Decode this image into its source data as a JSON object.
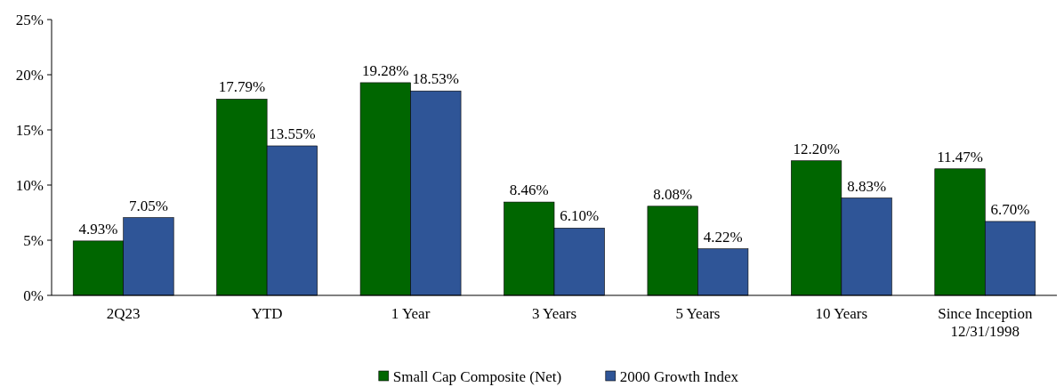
{
  "chart_data": {
    "type": "bar",
    "categories": [
      "2Q23",
      "YTD",
      "1 Year",
      "3 Years",
      "5 Years",
      "10 Years",
      "Since Inception\n12/31/1998"
    ],
    "series": [
      {
        "name": "Small Cap Composite (Net)",
        "color": "#006600",
        "values": [
          4.93,
          17.79,
          19.28,
          8.46,
          8.08,
          12.2,
          11.47
        ],
        "value_labels": [
          "4.93%",
          "17.79%",
          "19.28%",
          "8.46%",
          "8.08%",
          "12.20%",
          "11.47%"
        ]
      },
      {
        "name": "2000 Growth Index",
        "color": "#2f5597",
        "values": [
          7.05,
          13.55,
          18.53,
          6.1,
          4.22,
          8.83,
          6.7
        ],
        "value_labels": [
          "7.05%",
          "13.55%",
          "18.53%",
          "6.10%",
          "4.22%",
          "8.83%",
          "6.70%"
        ]
      }
    ],
    "ylim": [
      0,
      25
    ],
    "yticks": [
      {
        "value": 0,
        "label": "0%"
      },
      {
        "value": 5,
        "label": "5%"
      },
      {
        "value": 10,
        "label": "10%"
      },
      {
        "value": 15,
        "label": "15%"
      },
      {
        "value": 20,
        "label": "20%"
      },
      {
        "value": 25,
        "label": "25%"
      }
    ],
    "grid": false,
    "legend": "bottom"
  }
}
